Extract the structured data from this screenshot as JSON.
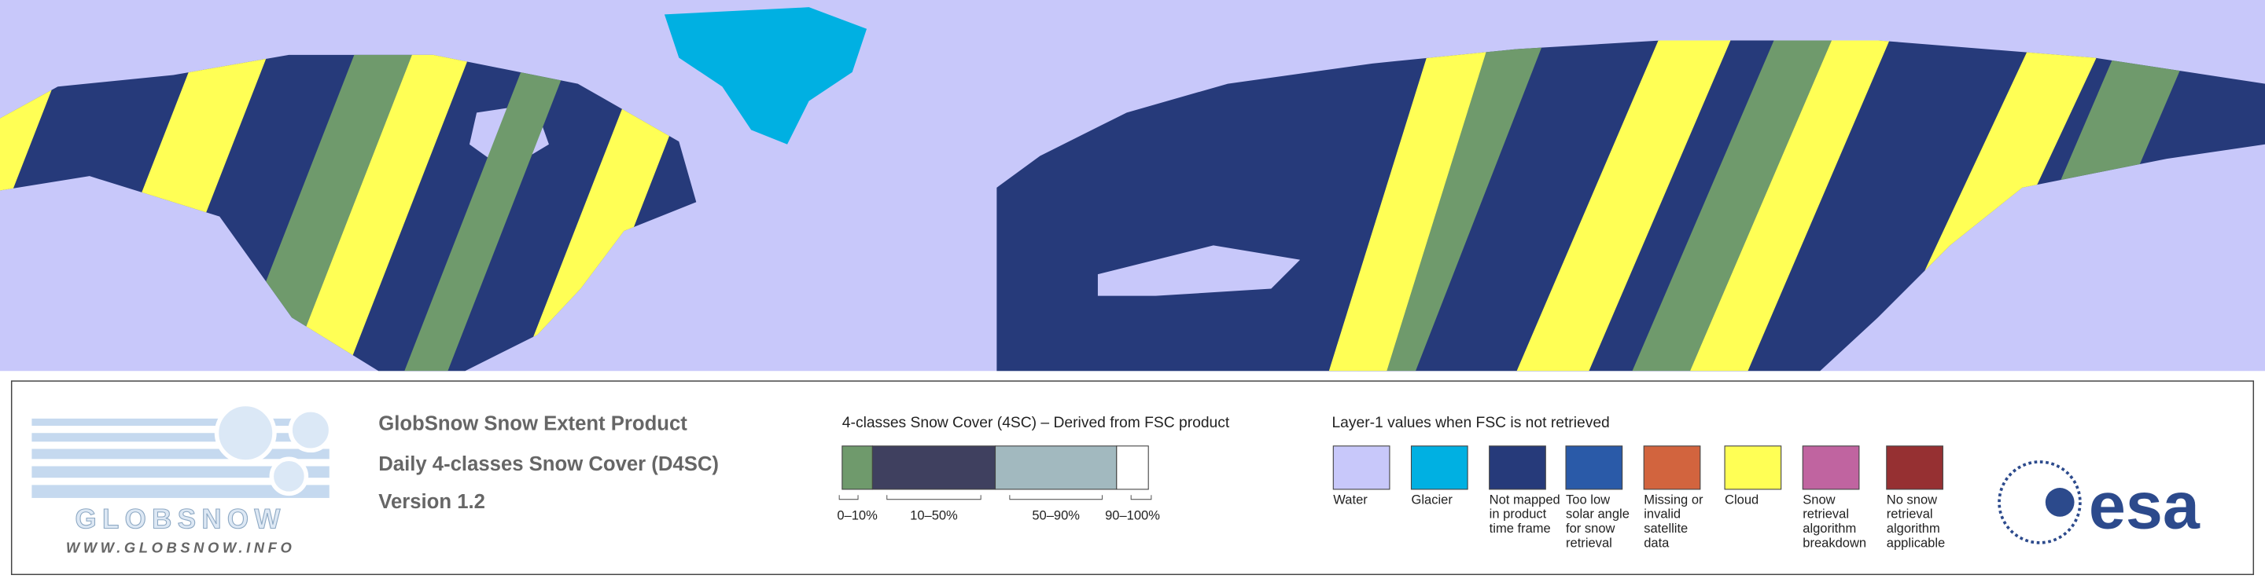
{
  "logo": {
    "name": "GLOBSNOW",
    "url": "WWW.GLOBSNOW.INFO"
  },
  "header": {
    "product": "GlobSnow Snow Extent Product",
    "subtitle": "Daily 4-classes Snow Cover (D4SC)",
    "version": "Version 1.2"
  },
  "snow_classes": {
    "title": "4-classes Snow Cover (4SC) – Derived from FSC product",
    "items": [
      {
        "label": "0–10%",
        "color": "#6f9a6c"
      },
      {
        "label": "10–50%",
        "color": "#3f405f"
      },
      {
        "label": "50–90%",
        "color": "#a2b9bf"
      },
      {
        "label": "90–100%",
        "color": "#ffffff"
      }
    ]
  },
  "layer1": {
    "title": "Layer-1 values when FSC is not retrieved",
    "items": [
      {
        "label": "Water",
        "color": "#c8c8fa"
      },
      {
        "label": "Glacier",
        "color": "#00b0e2"
      },
      {
        "label": "Not mapped in product time frame",
        "color": "#263a7a"
      },
      {
        "label": "Too low solar angle for snow retrieval",
        "color": "#2a5aa8"
      },
      {
        "label": "Missing or invalid satellite data",
        "color": "#d2643e"
      },
      {
        "label": "Cloud",
        "color": "#ffff55"
      },
      {
        "label": "Snow retrieval algorithm breakdown",
        "color": "#c064a0"
      },
      {
        "label": "No snow retrieval algorithm applicable",
        "color": "#963032"
      }
    ]
  },
  "agency": "esa"
}
